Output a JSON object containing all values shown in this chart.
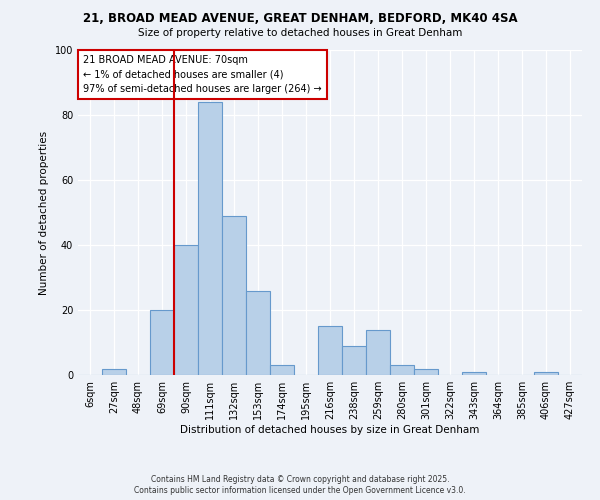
{
  "title1": "21, BROAD MEAD AVENUE, GREAT DENHAM, BEDFORD, MK40 4SA",
  "title2": "Size of property relative to detached houses in Great Denham",
  "xlabel": "Distribution of detached houses by size in Great Denham",
  "ylabel": "Number of detached properties",
  "bin_labels": [
    "6sqm",
    "27sqm",
    "48sqm",
    "69sqm",
    "90sqm",
    "111sqm",
    "132sqm",
    "153sqm",
    "174sqm",
    "195sqm",
    "216sqm",
    "238sqm",
    "259sqm",
    "280sqm",
    "301sqm",
    "322sqm",
    "343sqm",
    "364sqm",
    "385sqm",
    "406sqm",
    "427sqm"
  ],
  "bar_heights": [
    0,
    2,
    0,
    20,
    40,
    84,
    49,
    26,
    3,
    0,
    15,
    9,
    14,
    3,
    2,
    0,
    1,
    0,
    0,
    1,
    0
  ],
  "bar_color": "#b8d0e8",
  "bar_edge_color": "#6699cc",
  "vline_x": 3.5,
  "vline_color": "#cc0000",
  "ylim": [
    0,
    100
  ],
  "annotation_text": "21 BROAD MEAD AVENUE: 70sqm\n← 1% of detached houses are smaller (4)\n97% of semi-detached houses are larger (264) →",
  "box_edge_color": "#cc0000",
  "footnote1": "Contains HM Land Registry data © Crown copyright and database right 2025.",
  "footnote2": "Contains public sector information licensed under the Open Government Licence v3.0.",
  "background_color": "#eef2f8"
}
